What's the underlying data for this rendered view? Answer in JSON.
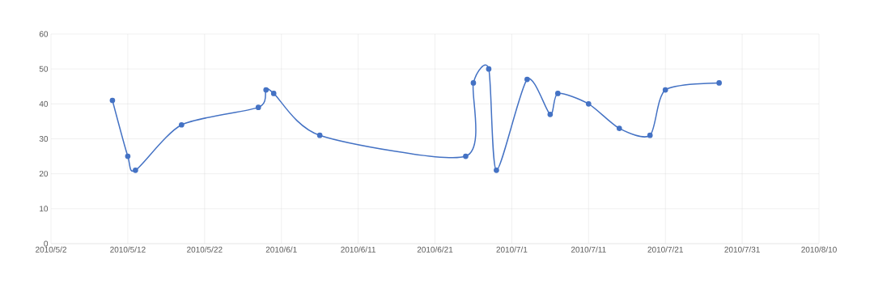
{
  "chart_data": {
    "type": "line",
    "color": "#4472c4",
    "marker": "circle",
    "grid": true,
    "xlim": [
      "2010-05-02",
      "2010-08-10"
    ],
    "xticks": [
      {
        "value": "2010-05-02",
        "label": "2010/5/2"
      },
      {
        "value": "2010-05-12",
        "label": "2010/5/12"
      },
      {
        "value": "2010-05-22",
        "label": "2010/5/22"
      },
      {
        "value": "2010-06-01",
        "label": "2010/6/1"
      },
      {
        "value": "2010-06-11",
        "label": "2010/6/11"
      },
      {
        "value": "2010-06-21",
        "label": "2010/6/21"
      },
      {
        "value": "2010-07-01",
        "label": "2010/7/1"
      },
      {
        "value": "2010-07-11",
        "label": "2010/7/11"
      },
      {
        "value": "2010-07-21",
        "label": "2010/7/21"
      },
      {
        "value": "2010-07-31",
        "label": "2010/7/31"
      },
      {
        "value": "2010-08-10",
        "label": "2010/8/10"
      }
    ],
    "ylim": [
      0,
      60
    ],
    "yticks": [
      0,
      10,
      20,
      30,
      40,
      50,
      60
    ],
    "x": [
      "2010-05-10",
      "2010-05-12",
      "2010-05-13",
      "2010-05-19",
      "2010-05-29",
      "2010-05-30",
      "2010-05-31",
      "2010-06-06",
      "2010-06-25",
      "2010-06-26",
      "2010-06-28",
      "2010-06-29",
      "2010-07-03",
      "2010-07-06",
      "2010-07-07",
      "2010-07-11",
      "2010-07-15",
      "2010-07-19",
      "2010-07-21",
      "2010-07-28"
    ],
    "values": [
      41,
      25,
      21,
      34,
      39,
      44,
      43,
      31,
      25,
      46,
      50,
      21,
      47,
      37,
      43,
      40,
      33,
      31,
      44,
      46
    ]
  }
}
